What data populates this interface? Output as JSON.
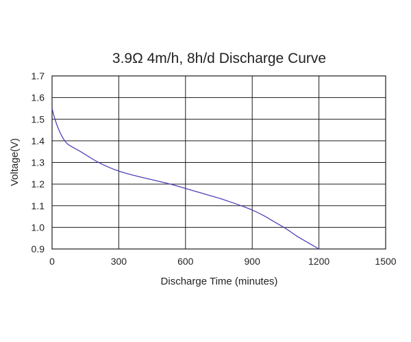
{
  "chart_data": {
    "type": "line",
    "title": "3.9Ω 4m/h, 8h/d Discharge Curve",
    "xlabel": "Discharge Time (minutes)",
    "ylabel": "Voltage(V)",
    "xlim": [
      0,
      1500
    ],
    "ylim": [
      0.9,
      1.7
    ],
    "xticks": [
      "0",
      "300",
      "600",
      "900",
      "1200",
      "1500"
    ],
    "yticks": [
      "0.9",
      "1.0",
      "1.1",
      "1.2",
      "1.3",
      "1.4",
      "1.5",
      "1.6",
      "1.7"
    ],
    "grid": true,
    "line_color": "#4b3fb5",
    "series": [
      {
        "x": [
          0,
          10,
          25,
          45,
          65,
          90,
          120,
          160,
          200,
          250,
          300,
          350,
          400,
          450,
          500,
          550,
          600,
          650,
          700,
          750,
          800,
          850,
          900,
          950,
          1000,
          1050,
          1100,
          1150,
          1200
        ],
        "y": [
          1.55,
          1.51,
          1.465,
          1.42,
          1.39,
          1.372,
          1.355,
          1.33,
          1.305,
          1.28,
          1.26,
          1.245,
          1.232,
          1.22,
          1.208,
          1.195,
          1.18,
          1.165,
          1.15,
          1.135,
          1.118,
          1.1,
          1.08,
          1.055,
          1.025,
          0.995,
          0.96,
          0.93,
          0.9
        ]
      }
    ]
  }
}
